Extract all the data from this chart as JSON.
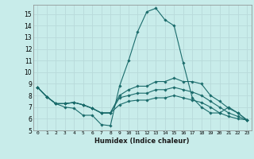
{
  "xlabel": "Humidex (Indice chaleur)",
  "ylabel": "",
  "background_color": "#c8ecea",
  "grid_color": "#b8dada",
  "line_color": "#1a6b6b",
  "xlim": [
    -0.5,
    23.5
  ],
  "ylim": [
    5,
    15.8
  ],
  "xticks": [
    0,
    1,
    2,
    3,
    4,
    5,
    6,
    7,
    8,
    9,
    10,
    11,
    12,
    13,
    14,
    15,
    16,
    17,
    18,
    19,
    20,
    21,
    22,
    23
  ],
  "yticks": [
    5,
    6,
    7,
    8,
    9,
    10,
    11,
    12,
    13,
    14,
    15
  ],
  "lines": [
    [
      8.7,
      7.9,
      7.3,
      7.0,
      6.9,
      6.3,
      6.3,
      5.5,
      5.4,
      8.8,
      11.0,
      13.5,
      15.2,
      15.5,
      14.5,
      14.0,
      10.8,
      7.8,
      7.0,
      6.5,
      6.5,
      7.0,
      6.5,
      5.9
    ],
    [
      8.7,
      7.9,
      7.3,
      7.3,
      7.4,
      7.2,
      6.9,
      6.5,
      6.5,
      8.0,
      8.5,
      8.8,
      8.8,
      9.2,
      9.2,
      9.5,
      9.2,
      9.2,
      9.0,
      8.0,
      7.5,
      6.9,
      6.5,
      5.9
    ],
    [
      8.7,
      7.9,
      7.3,
      7.3,
      7.4,
      7.2,
      6.9,
      6.5,
      6.5,
      7.8,
      8.0,
      8.2,
      8.2,
      8.5,
      8.5,
      8.7,
      8.5,
      8.3,
      8.0,
      7.5,
      7.0,
      6.5,
      6.2,
      5.9
    ],
    [
      8.7,
      7.9,
      7.3,
      7.3,
      7.4,
      7.2,
      6.9,
      6.5,
      6.5,
      7.2,
      7.5,
      7.6,
      7.6,
      7.8,
      7.8,
      8.0,
      7.8,
      7.6,
      7.4,
      7.0,
      6.5,
      6.2,
      6.0,
      5.9
    ]
  ]
}
